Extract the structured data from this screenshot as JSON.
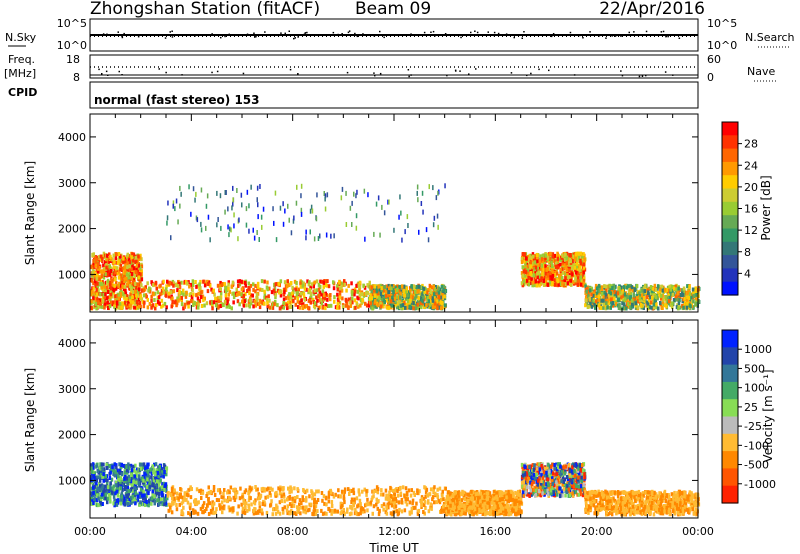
{
  "header": {
    "station": "Zhongshan Station (fitACF)",
    "beam": "Beam 09",
    "date": "22/Apr/2016"
  },
  "status_panels": {
    "nsky": {
      "label": "N.Sky",
      "ticks_left": [
        "10^5",
        "10^0"
      ]
    },
    "nsearch": {
      "label": "N.Search",
      "ticks_right": [
        "10^5",
        "10^0"
      ]
    },
    "freq": {
      "label_top": "Freq.",
      "label_unit": "[MHz]",
      "ticks_left": [
        "18",
        "8"
      ]
    },
    "nave": {
      "label": "Nave",
      "ticks_right": [
        "60",
        "0"
      ]
    },
    "cpid": {
      "label": "CPID",
      "text": "normal (fast stereo) 153"
    }
  },
  "chart_data": [
    {
      "type": "heatmap",
      "name": "power",
      "ylabel": "Slant Range [km]",
      "ylim": [
        180,
        4500
      ],
      "yticks": [
        "4000",
        "3000",
        "2000",
        "1000"
      ],
      "colorbar": {
        "label": "Power [dB]",
        "ticks": [
          "28",
          "24",
          "20",
          "16",
          "12",
          "8",
          "4"
        ],
        "colors": [
          "#ff0000",
          "#ff3300",
          "#ff6600",
          "#ff9900",
          "#ffcc00",
          "#cccc33",
          "#99cc33",
          "#66aa55",
          "#339966",
          "#337777",
          "#335599",
          "#2233bb",
          "#0011ff"
        ]
      },
      "echo_regions": [
        {
          "t": [
            0.0,
            2.0
          ],
          "r": [
            300,
            1500
          ],
          "level": "high"
        },
        {
          "t": [
            2.0,
            11.0
          ],
          "r": [
            300,
            900
          ],
          "level": "high"
        },
        {
          "t": [
            11.0,
            14.0
          ],
          "r": [
            300,
            800
          ],
          "level": "medium"
        },
        {
          "t": [
            17.0,
            19.5
          ],
          "r": [
            800,
            1500
          ],
          "level": "high"
        },
        {
          "t": [
            19.5,
            24.0
          ],
          "r": [
            300,
            800
          ],
          "level": "medium"
        },
        {
          "t": [
            3.0,
            14.0
          ],
          "r": [
            1800,
            3000
          ],
          "level": "scattered"
        }
      ]
    },
    {
      "type": "heatmap",
      "name": "velocity",
      "ylabel": "Slant Range [km]",
      "ylim": [
        180,
        4500
      ],
      "yticks": [
        "4000",
        "3000",
        "2000",
        "1000"
      ],
      "xlabel": "Time UT",
      "xticks": [
        "00:00",
        "04:00",
        "08:00",
        "12:00",
        "16:00",
        "20:00",
        "00:00"
      ],
      "colorbar": {
        "label": "Velocity [m s⁻¹]",
        "ticks": [
          "1000",
          "500",
          "100",
          "25",
          "-25",
          "-100",
          "-500",
          "-1000"
        ],
        "colors": [
          "#0022ff",
          "#2244aa",
          "#337799",
          "#44aa66",
          "#88dd55",
          "#bbbbbb",
          "#ffbb33",
          "#ff8800",
          "#ff5500",
          "#ff2200"
        ]
      },
      "echo_regions": [
        {
          "t": [
            0.0,
            3.0
          ],
          "r": [
            500,
            1400
          ],
          "v": "positive"
        },
        {
          "t": [
            3.0,
            14.0
          ],
          "r": [
            300,
            900
          ],
          "v": "negative"
        },
        {
          "t": [
            14.0,
            17.0
          ],
          "r": [
            300,
            800
          ],
          "v": "negative"
        },
        {
          "t": [
            17.0,
            19.5
          ],
          "r": [
            700,
            1400
          ],
          "v": "mixed"
        },
        {
          "t": [
            19.5,
            24.0
          ],
          "r": [
            300,
            800
          ],
          "v": "negative"
        }
      ]
    }
  ]
}
